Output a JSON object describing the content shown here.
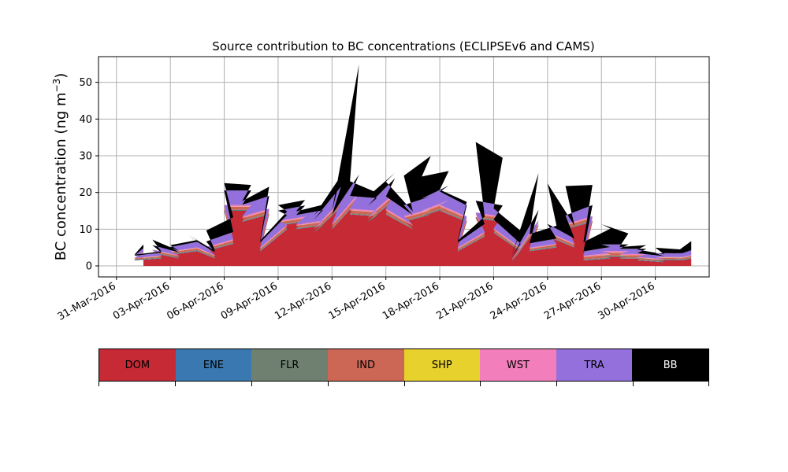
{
  "chart_data": {
    "type": "area",
    "stacked": true,
    "title": "Source contribution to BC concentrations (ECLIPSEv6 and CAMS)",
    "ylabel": "BC concentration (ng m",
    "ylabel_sup": "−3",
    "ylabel_end": ")",
    "xlabel": "",
    "xlim": [
      "2016-03-30",
      "2016-05-03"
    ],
    "ylim": [
      -3,
      57
    ],
    "yticks": [
      0,
      10,
      20,
      30,
      40,
      50
    ],
    "xticks": [
      "31-Mar-2016",
      "03-Apr-2016",
      "06-Apr-2016",
      "09-Apr-2016",
      "12-Apr-2016",
      "15-Apr-2016",
      "18-Apr-2016",
      "21-Apr-2016",
      "24-Apr-2016",
      "27-Apr-2016",
      "30-Apr-2016"
    ],
    "grid": true,
    "x": [
      "2016-04-01",
      "2016-04-01",
      "2016-04-02",
      "2016-04-02",
      "2016-04-03",
      "2016-04-03",
      "2016-04-04",
      "2016-04-04",
      "2016-04-05",
      "2016-04-05",
      "2016-04-06",
      "2016-04-06",
      "2016-04-07",
      "2016-04-07",
      "2016-04-08",
      "2016-04-08",
      "2016-04-09",
      "2016-04-09",
      "2016-04-10",
      "2016-04-10",
      "2016-04-11",
      "2016-04-11",
      "2016-04-12",
      "2016-04-12",
      "2016-04-13",
      "2016-04-13",
      "2016-04-14",
      "2016-04-14",
      "2016-04-15",
      "2016-04-15",
      "2016-04-16",
      "2016-04-16",
      "2016-04-17",
      "2016-04-17",
      "2016-04-18",
      "2016-04-18",
      "2016-04-19",
      "2016-04-19",
      "2016-04-20",
      "2016-04-20",
      "2016-04-21",
      "2016-04-21",
      "2016-04-22",
      "2016-04-22",
      "2016-04-23",
      "2016-04-23",
      "2016-04-24",
      "2016-04-24",
      "2016-04-25",
      "2016-04-25",
      "2016-04-26",
      "2016-04-26",
      "2016-04-27",
      "2016-04-27",
      "2016-04-28",
      "2016-04-28",
      "2016-04-29",
      "2016-04-29",
      "2016-04-30",
      "2016-04-30",
      "2016-05-01",
      "2016-05-01",
      "2016-05-02"
    ],
    "x_hour": [
      12,
      0,
      12,
      0,
      12,
      0,
      12,
      0,
      12,
      0,
      12,
      0,
      12,
      0,
      12,
      0,
      12,
      0,
      12,
      0,
      12,
      0,
      12,
      0,
      12,
      0,
      12,
      0,
      12,
      0,
      12,
      0,
      12,
      0,
      12,
      0,
      12,
      0,
      12,
      0,
      12,
      0,
      12,
      0,
      12,
      0,
      12,
      0,
      12,
      0,
      12,
      0,
      12,
      0,
      12,
      0,
      12,
      0,
      12,
      0,
      12,
      0,
      0
    ],
    "series": [
      {
        "name": "DOM",
        "color": "#c52a35",
        "values": [
          3.0,
          1.5,
          2.0,
          3.5,
          2.0,
          3.0,
          4.0,
          5.0,
          2.0,
          4.0,
          6.0,
          15.0,
          15.0,
          12.0,
          14.0,
          4.0,
          10.0,
          11.0,
          12.0,
          10.0,
          11.0,
          9.0,
          16.0,
          10.0,
          18.0,
          14.0,
          13.5,
          12.0,
          18.0,
          14.0,
          10.0,
          12.0,
          14.0,
          13.5,
          16.0,
          15.0,
          12.0,
          4.0,
          8.0,
          13.0,
          12.0,
          9.0,
          4.0,
          1.0,
          11.0,
          4.0,
          5.0,
          8.0,
          5.0,
          10.0,
          12.0,
          1.5,
          2.0,
          2.5,
          2.5,
          2.0,
          2.0,
          1.5,
          1.0,
          1.5,
          1.5,
          1.0,
          2.0
        ]
      },
      {
        "name": "ENE",
        "color": "#3978b1",
        "values": [
          0.1,
          0.1,
          0.1,
          0.1,
          0.1,
          0.1,
          0.1,
          0.1,
          0.1,
          0.1,
          0.1,
          0.1,
          0.1,
          0.1,
          0.1,
          0.1,
          0.1,
          0.1,
          0.1,
          0.1,
          0.1,
          0.1,
          0.1,
          0.1,
          0.1,
          0.1,
          0.1,
          0.1,
          0.1,
          0.1,
          0.1,
          0.1,
          0.1,
          0.1,
          0.1,
          0.1,
          0.1,
          0.1,
          0.1,
          0.1,
          0.1,
          0.1,
          0.1,
          0.1,
          0.1,
          0.1,
          0.1,
          0.1,
          0.1,
          0.1,
          0.1,
          0.1,
          0.1,
          0.1,
          0.1,
          0.1,
          0.1,
          0.1,
          0.1,
          0.1,
          0.1,
          0.1,
          0.1
        ]
      },
      {
        "name": "FLR",
        "color": "#6f8070",
        "values": [
          0.2,
          0.2,
          0.2,
          0.2,
          0.2,
          0.2,
          0.2,
          0.2,
          0.2,
          0.2,
          0.2,
          0.2,
          0.2,
          0.2,
          0.2,
          0.2,
          0.2,
          0.2,
          0.2,
          0.2,
          0.2,
          0.2,
          0.2,
          0.2,
          0.2,
          0.2,
          0.2,
          0.2,
          0.2,
          0.2,
          0.2,
          0.2,
          0.2,
          0.2,
          0.2,
          0.2,
          0.2,
          0.2,
          0.2,
          0.2,
          0.2,
          0.2,
          0.2,
          0.2,
          0.2,
          0.2,
          0.2,
          0.2,
          0.2,
          0.2,
          0.2,
          0.2,
          0.2,
          0.2,
          0.2,
          0.2,
          0.2,
          0.2,
          0.2,
          0.2,
          0.2,
          0.2,
          0.2
        ]
      },
      {
        "name": "IND",
        "color": "#cc6655",
        "values": [
          0.3,
          0.2,
          0.3,
          0.4,
          0.3,
          0.4,
          0.5,
          0.5,
          0.3,
          0.5,
          0.6,
          0.8,
          0.8,
          0.7,
          0.8,
          0.4,
          0.6,
          0.6,
          0.7,
          0.6,
          0.7,
          0.6,
          0.9,
          0.7,
          1.0,
          0.8,
          0.8,
          0.7,
          1.0,
          0.8,
          0.6,
          0.8,
          0.8,
          0.8,
          1.0,
          0.9,
          0.7,
          0.4,
          0.6,
          0.8,
          0.7,
          0.6,
          0.3,
          0.2,
          0.7,
          0.4,
          0.5,
          0.6,
          0.5,
          0.7,
          0.8,
          0.6,
          0.8,
          0.8,
          0.8,
          0.6,
          0.6,
          0.4,
          0.3,
          0.4,
          0.4,
          0.3,
          0.4
        ]
      },
      {
        "name": "SHP",
        "color": "#e7d12d",
        "values": [
          0.05,
          0.05,
          0.05,
          0.05,
          0.05,
          0.05,
          0.05,
          0.05,
          0.05,
          0.05,
          0.05,
          0.05,
          0.05,
          0.05,
          0.05,
          0.05,
          0.05,
          0.05,
          0.05,
          0.05,
          0.05,
          0.05,
          0.05,
          0.05,
          0.05,
          0.05,
          0.05,
          0.05,
          0.05,
          0.05,
          0.05,
          0.05,
          0.05,
          0.05,
          0.05,
          0.05,
          0.05,
          0.05,
          0.05,
          0.05,
          0.05,
          0.05,
          0.05,
          0.05,
          0.05,
          0.05,
          0.05,
          0.05,
          0.05,
          0.05,
          0.05,
          0.05,
          0.05,
          0.05,
          0.05,
          0.05,
          0.05,
          0.05,
          0.05,
          0.05,
          0.05,
          0.05,
          0.05
        ]
      },
      {
        "name": "WST",
        "color": "#f27fbb",
        "values": [
          0.2,
          0.1,
          0.2,
          0.2,
          0.2,
          0.2,
          0.2,
          0.3,
          0.2,
          0.3,
          0.3,
          0.4,
          0.4,
          0.4,
          0.4,
          0.2,
          0.3,
          0.3,
          0.4,
          0.3,
          0.3,
          0.3,
          0.5,
          0.3,
          0.5,
          0.4,
          0.4,
          0.4,
          0.5,
          0.4,
          0.3,
          0.4,
          0.4,
          0.4,
          0.5,
          0.4,
          0.4,
          0.2,
          0.3,
          0.4,
          0.4,
          0.3,
          0.2,
          0.1,
          0.4,
          0.2,
          0.2,
          0.3,
          0.2,
          0.3,
          0.4,
          0.3,
          0.4,
          0.4,
          0.4,
          0.3,
          0.3,
          0.2,
          0.2,
          0.2,
          0.2,
          0.2,
          0.2
        ]
      },
      {
        "name": "TRA",
        "color": "#9370db",
        "values": [
          1.0,
          0.6,
          0.8,
          1.2,
          0.8,
          1.2,
          1.5,
          1.8,
          0.8,
          1.5,
          2.0,
          4.0,
          4.0,
          3.2,
          3.5,
          1.4,
          2.6,
          2.8,
          3.0,
          2.6,
          2.8,
          2.4,
          3.8,
          2.6,
          5.0,
          3.5,
          3.4,
          3.0,
          4.0,
          3.4,
          2.6,
          3.0,
          3.4,
          3.3,
          4.0,
          3.6,
          3.0,
          1.4,
          2.2,
          3.2,
          3.0,
          2.4,
          1.2,
          0.6,
          2.8,
          1.2,
          1.4,
          2.2,
          1.4,
          2.4,
          3.0,
          1.2,
          1.6,
          1.8,
          1.8,
          1.4,
          1.4,
          1.0,
          0.8,
          1.0,
          1.0,
          0.8,
          1.3
        ]
      },
      {
        "name": "BB",
        "color": "#000000",
        "values": [
          1.0,
          0.3,
          0.3,
          1.5,
          0.4,
          0.5,
          0.5,
          0.5,
          0.4,
          3.0,
          4.0,
          2.0,
          1.5,
          1.0,
          2.5,
          0.5,
          1.0,
          1.5,
          1.5,
          1.0,
          1.5,
          1.0,
          3.0,
          1.0,
          30.0,
          4.0,
          1.5,
          2.5,
          1.5,
          4.0,
          1.0,
          8.0,
          11.0,
          6.0,
          4.0,
          0.5,
          1.0,
          0.5,
          2.0,
          16.0,
          13.0,
          3.0,
          3.5,
          0.5,
          10.0,
          2.5,
          3.5,
          11.0,
          3.5,
          8.0,
          5.5,
          2.5,
          5.0,
          5.5,
          3.0,
          0.5,
          1.0,
          1.0,
          0.5,
          1.5,
          1.0,
          0.5,
          2.5
        ]
      }
    ],
    "legend": {
      "placement": "bottom",
      "style": "colorbar",
      "entries": [
        {
          "label": "DOM",
          "color": "#c52a35",
          "text_color": "#000000"
        },
        {
          "label": "ENE",
          "color": "#3978b1",
          "text_color": "#000000"
        },
        {
          "label": "FLR",
          "color": "#6f8070",
          "text_color": "#000000"
        },
        {
          "label": "IND",
          "color": "#cc6655",
          "text_color": "#000000"
        },
        {
          "label": "SHP",
          "color": "#e7d12d",
          "text_color": "#000000"
        },
        {
          "label": "WST",
          "color": "#f27fbb",
          "text_color": "#000000"
        },
        {
          "label": "TRA",
          "color": "#9370db",
          "text_color": "#000000"
        },
        {
          "label": "BB",
          "color": "#000000",
          "text_color": "#ffffff"
        }
      ]
    }
  }
}
